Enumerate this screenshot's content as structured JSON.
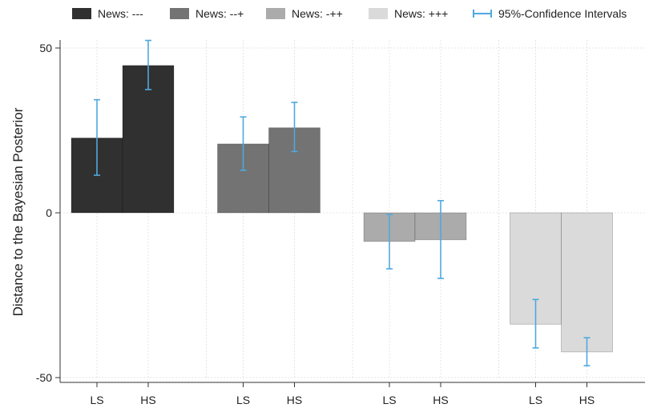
{
  "chart_data": {
    "type": "bar",
    "title": "",
    "ylabel": "Distance to the Bayesian Posterior",
    "xlabel": "",
    "ylim": [
      -50,
      50
    ],
    "yticks": [
      50,
      0,
      -50
    ],
    "grid": true,
    "legend_position": "top",
    "groups": [
      {
        "name": "News: ---",
        "color": "#303030",
        "bars": [
          {
            "label": "LS",
            "value": 22.7,
            "ci": [
              11.4,
              34.3
            ]
          },
          {
            "label": "HS",
            "value": 44.7,
            "ci": [
              37.4,
              52.3
            ]
          }
        ]
      },
      {
        "name": "News: --+",
        "color": "#737373",
        "bars": [
          {
            "label": "LS",
            "value": 20.9,
            "ci": [
              12.9,
              29.1
            ]
          },
          {
            "label": "HS",
            "value": 25.8,
            "ci": [
              18.6,
              33.5
            ]
          }
        ]
      },
      {
        "name": "News: -++",
        "color": "#ababab",
        "bars": [
          {
            "label": "LS",
            "value": -8.7,
            "ci": [
              -17.0,
              -0.5
            ]
          },
          {
            "label": "HS",
            "value": -8.2,
            "ci": [
              -19.9,
              3.7
            ]
          }
        ]
      },
      {
        "name": "News: +++",
        "color": "#dadada",
        "bars": [
          {
            "label": "LS",
            "value": -33.8,
            "ci": [
              -41.0,
              -26.3
            ]
          },
          {
            "label": "HS",
            "value": -42.2,
            "ci": [
              -46.4,
              -37.9
            ]
          }
        ]
      }
    ],
    "ci_label": "95%-Confidence Intervals",
    "ci_color": "#4fa8df"
  }
}
